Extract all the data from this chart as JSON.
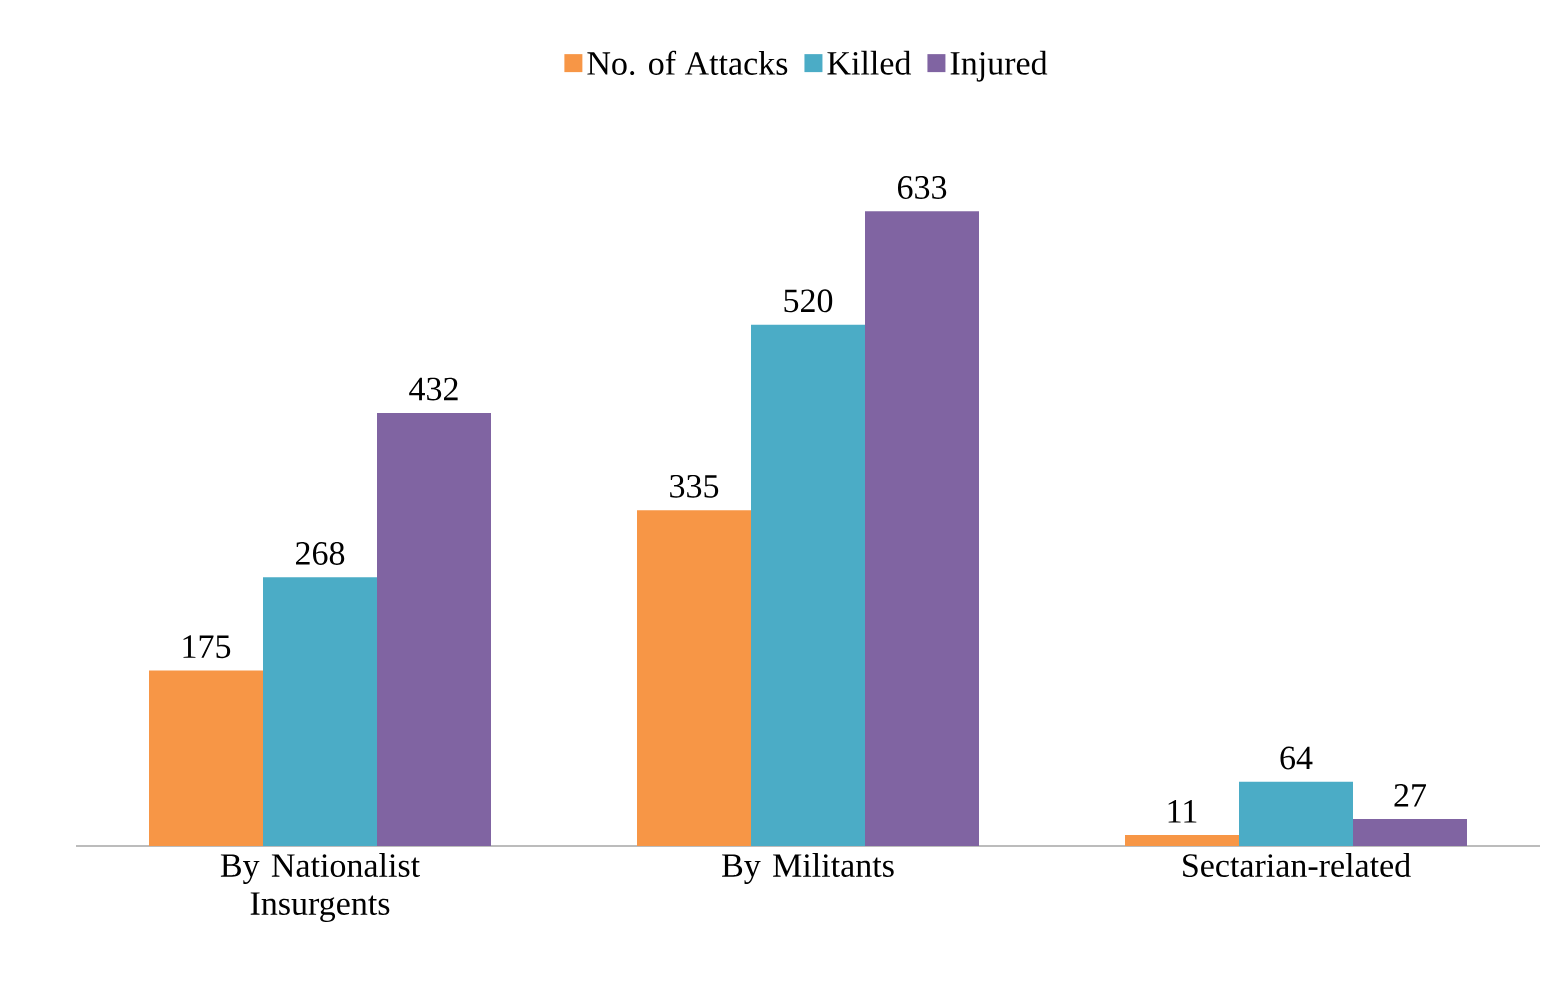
{
  "chart_data": {
    "type": "bar",
    "categories": [
      "By Nationalist Insurgents",
      "By Militants",
      "Sectarian-related"
    ],
    "series": [
      {
        "name": "No. of Attacks",
        "color": "#f79646",
        "values": [
          175,
          335,
          11
        ]
      },
      {
        "name": "Killed",
        "color": "#4bacc6",
        "values": [
          268,
          520,
          64
        ]
      },
      {
        "name": "Injured",
        "color": "#8064a2",
        "values": [
          432,
          633,
          27
        ]
      }
    ],
    "data_labels": true,
    "legend": "top"
  }
}
